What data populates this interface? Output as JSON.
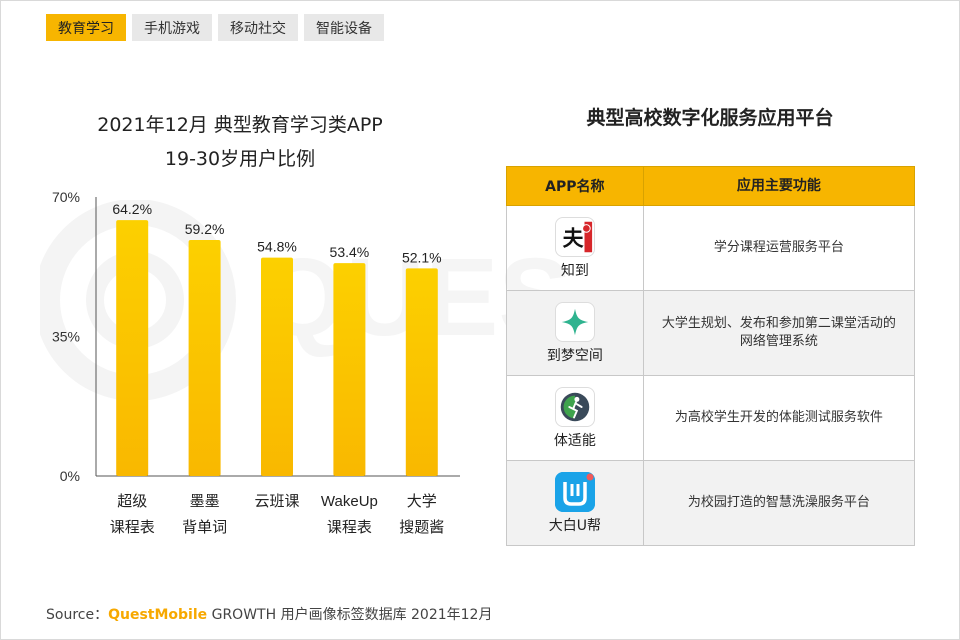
{
  "tabs": [
    "教育学习",
    "手机游戏",
    "移动社交",
    "智能设备"
  ],
  "active_tab": 0,
  "chart_data": {
    "type": "bar",
    "title_lines": [
      "2021年12月 典型教育学习类APP",
      "19-30岁用户比例"
    ],
    "categories": [
      [
        "超级",
        "课程表"
      ],
      [
        "墨墨",
        "背单词"
      ],
      [
        "云班课"
      ],
      [
        "WakeUp",
        "课程表"
      ],
      [
        "大学",
        "搜题酱"
      ]
    ],
    "values": [
      64.2,
      59.2,
      54.8,
      53.4,
      52.1
    ],
    "value_labels": [
      "64.2%",
      "59.2%",
      "54.8%",
      "53.4%",
      "52.1%"
    ],
    "y_ticks": [
      "0%",
      "35%",
      "70%"
    ],
    "y_tick_values": [
      0,
      35,
      70
    ],
    "ylim": [
      0,
      70
    ],
    "bar_color": "#f9b800",
    "bar_color_light": "#fcd000",
    "grid": false
  },
  "table": {
    "title": "典型高校数字化服务应用平台",
    "headers": [
      "APP名称",
      "应用主要功能"
    ],
    "rows": [
      {
        "name": "知到",
        "icon": "zhidao-logo-icon",
        "desc": [
          "学分课程运营服务平台"
        ]
      },
      {
        "name": "到梦空间",
        "icon": "daomeng-logo-icon",
        "desc": [
          "大学生规划、发布和参加第二课堂活动的",
          "网络管理系统"
        ]
      },
      {
        "name": "体适能",
        "icon": "tishineng-logo-icon",
        "desc": [
          "为高校学生开发的体能测试服务软件"
        ]
      },
      {
        "name": "大白U帮",
        "icon": "dabai-logo-icon",
        "desc": [
          "为校园打造的智慧洗澡服务平台"
        ]
      }
    ]
  },
  "watermark": "QUESTMOBILE",
  "source": {
    "prefix": "Source：",
    "brand": "QuestMobile",
    "suffix": " GROWTH 用户画像标签数据库 2021年12月"
  },
  "colors": {
    "accent": "#f7b500",
    "tab_inactive": "#e8e8e8",
    "row_alt": "#f2f2f2"
  }
}
